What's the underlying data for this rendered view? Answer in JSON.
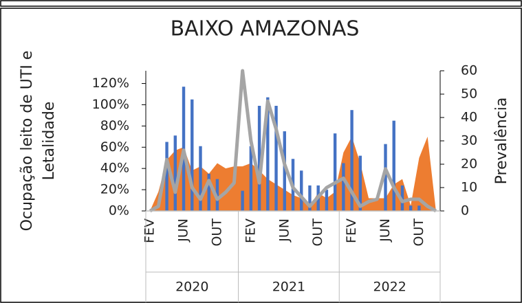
{
  "chart_data": {
    "type": "combo",
    "title": "BAIXO AMAZONAS",
    "ylabel": [
      "Ocupação leito de UTI e",
      "Letalidade"
    ],
    "y2label": "Prevalência",
    "categories": [
      "FEV",
      null,
      null,
      null,
      "JUN",
      null,
      null,
      null,
      "OUT",
      null,
      null,
      null,
      "FEV",
      null,
      null,
      null,
      "JUN",
      null,
      null,
      null,
      "OUT",
      null,
      null,
      null,
      "FEV",
      null,
      null,
      null,
      "JUN",
      null,
      null,
      null,
      "OUT",
      null,
      null
    ],
    "year_groups": [
      {
        "label": "2020",
        "count": 11
      },
      {
        "label": "2021",
        "count": 12
      },
      {
        "label": "2022",
        "count": 12
      }
    ],
    "series": [
      {
        "kind": "area",
        "color": "#ed7d31",
        "values": [
          0,
          18,
          48,
          57,
          60,
          38,
          42,
          35,
          45,
          40,
          42,
          42,
          45,
          38,
          30,
          25,
          20,
          15,
          12,
          5,
          17,
          12,
          18,
          55,
          70,
          45,
          12,
          12,
          12,
          25,
          30,
          5,
          50,
          70,
          0
        ]
      },
      {
        "kind": "bar",
        "color": "#4472c4",
        "values": [
          0,
          0,
          65,
          71,
          117,
          105,
          61,
          35,
          30,
          0,
          0,
          19,
          61,
          99,
          107,
          99,
          75,
          49,
          38,
          24,
          24,
          20,
          73,
          45,
          95,
          52,
          0,
          0,
          63,
          85,
          24,
          5,
          5,
          0,
          0
        ]
      },
      {
        "kind": "line",
        "color": "#a5a5a5",
        "axis": "y2",
        "values": [
          0,
          2,
          22,
          8,
          26,
          10,
          5,
          13,
          5,
          8,
          12,
          60,
          30,
          12,
          47,
          35,
          20,
          10,
          6,
          2,
          6,
          10,
          12,
          14,
          8,
          2,
          4,
          5,
          18,
          10,
          4,
          5,
          5,
          2,
          0
        ]
      }
    ],
    "ylim": [
      0,
      132
    ],
    "yticks": [
      {
        "value": 0,
        "label": "0%"
      },
      {
        "value": 20,
        "label": "20%"
      },
      {
        "value": 40,
        "label": "40%"
      },
      {
        "value": 60,
        "label": "60%"
      },
      {
        "value": 80,
        "label": "80%"
      },
      {
        "value": 100,
        "label": "100%"
      },
      {
        "value": 120,
        "label": "120%"
      }
    ],
    "y2lim": [
      0,
      60
    ],
    "y2ticks": [
      0,
      10,
      20,
      30,
      40,
      50,
      60
    ]
  }
}
